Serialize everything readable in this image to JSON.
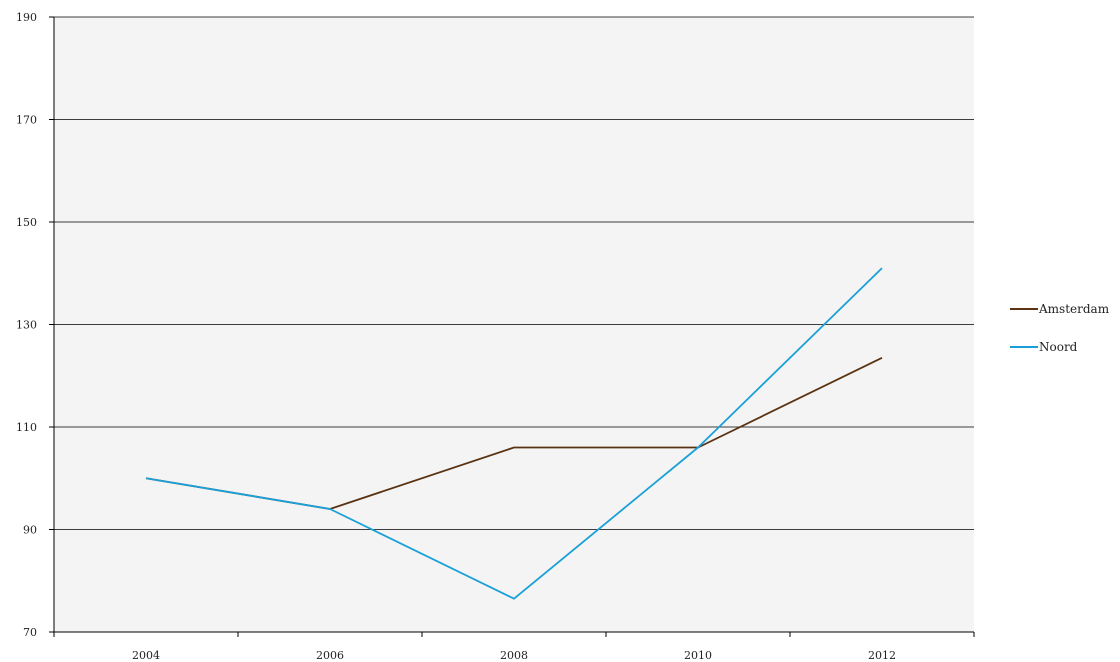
{
  "chart_data": {
    "type": "line",
    "x": [
      "2004",
      "2006",
      "2008",
      "2010",
      "2012"
    ],
    "series": [
      {
        "name": "Amsterdam",
        "values": [
          100,
          94,
          106,
          106,
          123.5
        ],
        "color": "#5a3412"
      },
      {
        "name": "Noord",
        "values": [
          100,
          94,
          76.5,
          106,
          141
        ],
        "color": "#1aa0d8"
      }
    ],
    "title": "",
    "xlabel": "",
    "ylabel": "",
    "ylim": [
      70,
      190
    ],
    "yticks": [
      70,
      90,
      110,
      130,
      150,
      170,
      190
    ],
    "grid": true,
    "plot_background": "#f4f4f4",
    "gridline_color": "#000000",
    "legend_position": "right"
  }
}
